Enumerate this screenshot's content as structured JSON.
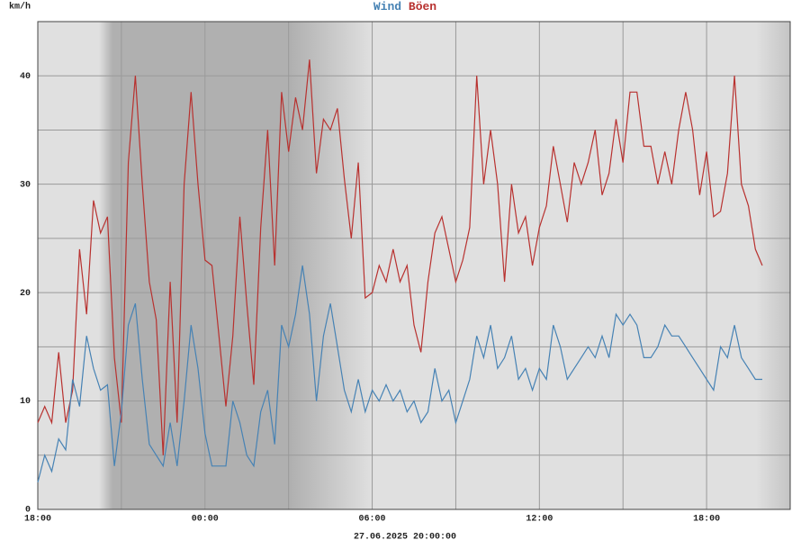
{
  "chart_data": {
    "type": "line",
    "ylabel": "km/h",
    "xlabel": "27.06.2025 20:00:00",
    "x": [
      0,
      0.25,
      0.5,
      0.75,
      1,
      1.25,
      1.5,
      1.75,
      2,
      2.25,
      2.5,
      2.75,
      3,
      3.25,
      3.5,
      3.75,
      4,
      4.25,
      4.5,
      4.75,
      5,
      5.25,
      5.5,
      5.75,
      6,
      6.25,
      6.5,
      6.75,
      7,
      7.25,
      7.5,
      7.75,
      8,
      8.25,
      8.5,
      8.75,
      9,
      9.25,
      9.5,
      9.75,
      10,
      10.25,
      10.5,
      10.75,
      11,
      11.25,
      11.5,
      11.75,
      12,
      12.25,
      12.5,
      12.75,
      13,
      13.25,
      13.5,
      13.75,
      14,
      14.25,
      14.5,
      14.75,
      15,
      15.25,
      15.5,
      15.75,
      16,
      16.25,
      16.5,
      16.75,
      17,
      17.25,
      17.5,
      17.75,
      18,
      18.25,
      18.5,
      18.75,
      19,
      19.25,
      19.5,
      19.75,
      20,
      20.25,
      20.5,
      20.75,
      21,
      21.25,
      21.5,
      21.75,
      22,
      22.25,
      22.5,
      22.75,
      23,
      23.25,
      23.5,
      23.75,
      24,
      24.25,
      24.5,
      24.75,
      25,
      25.25,
      25.5,
      25.75,
      26
    ],
    "series": [
      {
        "name": "Wind",
        "color": "#4682b4",
        "values": [
          2.5,
          5,
          3.5,
          6.5,
          5.5,
          12,
          9.5,
          16,
          13,
          11,
          11.5,
          4,
          9,
          17,
          19,
          12,
          6,
          5,
          4,
          8,
          4,
          10,
          17,
          13,
          7,
          4,
          4,
          4,
          10,
          8,
          5,
          4,
          9,
          11,
          6,
          17,
          15,
          18,
          22.5,
          18,
          10,
          16,
          19,
          15,
          11,
          9,
          12,
          9,
          11,
          10,
          11.5,
          10,
          11,
          9,
          10,
          8,
          9,
          13,
          10,
          11,
          8,
          10,
          12,
          16,
          14,
          17,
          13,
          14,
          16,
          12,
          13,
          11,
          13,
          12,
          17,
          15,
          12,
          13,
          14,
          15,
          14,
          16,
          14,
          18,
          17,
          18,
          17,
          14,
          14,
          15,
          17,
          16,
          16,
          15,
          14,
          13,
          12,
          11,
          15,
          14,
          17,
          14,
          13,
          12,
          12
        ]
      },
      {
        "name": "Böen",
        "color": "#b8312f",
        "values": [
          8,
          9.5,
          8,
          14.5,
          8,
          11,
          24,
          18,
          28.5,
          25.5,
          27,
          14,
          8,
          32,
          40,
          30,
          21,
          17.5,
          5,
          21,
          8,
          30,
          38.5,
          30,
          23,
          22.5,
          16,
          9.5,
          16,
          27,
          19,
          11.5,
          26,
          35,
          22.5,
          38.5,
          33,
          38,
          35,
          41.5,
          31,
          36,
          35,
          37,
          30.5,
          25,
          32,
          19.5,
          20,
          22.5,
          21,
          24,
          21,
          22.5,
          17,
          14.5,
          21,
          25.5,
          27,
          24,
          21,
          23,
          26,
          40,
          30,
          35,
          30,
          21,
          30,
          25.5,
          27,
          22.5,
          26,
          28,
          33.5,
          30,
          26.5,
          32,
          30,
          32,
          35,
          29,
          31,
          36,
          32,
          38.5,
          38.5,
          33.5,
          33.5,
          30,
          33,
          30,
          35,
          38.5,
          35,
          29,
          33,
          27,
          27.5,
          31,
          40,
          30,
          28,
          24,
          22.5
        ]
      }
    ],
    "xlim": [
      0,
      27
    ],
    "xticks": [
      {
        "value": 0,
        "label": "18:00"
      },
      {
        "value": 6,
        "label": "00:00"
      },
      {
        "value": 12,
        "label": "06:00"
      },
      {
        "value": 18,
        "label": "12:00"
      },
      {
        "value": 24,
        "label": "18:00"
      }
    ],
    "xminorticks": [
      3,
      9,
      15,
      21
    ],
    "ylim": [
      0,
      45
    ],
    "yticks": [
      0,
      10,
      20,
      30,
      40
    ],
    "yminorticks": [
      5,
      15,
      25,
      35
    ],
    "grid": true
  }
}
